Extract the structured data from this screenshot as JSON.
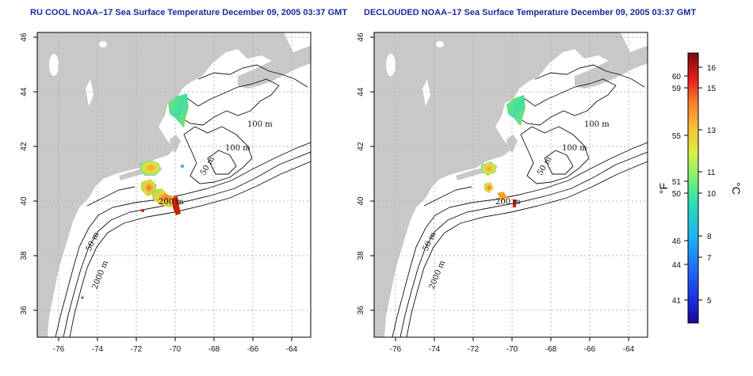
{
  "titles": {
    "left": "RU COOL NOAA–17 Sea Surface Temperature December 09, 2005 03:37 GMT",
    "right": "DECLOUDED NOAA–17 Sea Surface Temperature December 09, 2005 03:37 GMT"
  },
  "axes": {
    "x_ticks": [
      "-76",
      "-74",
      "-72",
      "-70",
      "-68",
      "-66",
      "-64"
    ],
    "y_ticks": [
      "36",
      "38",
      "40",
      "42",
      "44",
      "46"
    ]
  },
  "contour_labels": {
    "left": [
      "100 m",
      "100 m",
      "50 m",
      "200 m",
      "50 m",
      "2000 m"
    ],
    "right": [
      "100 m",
      "100 m",
      "50 m",
      "200 m",
      "50 m",
      "2000 m"
    ]
  },
  "colorbar": {
    "fahrenheit_ticks": [
      "60",
      "59",
      "55",
      "51",
      "50",
      "46",
      "44",
      "41"
    ],
    "celsius_ticks": [
      "16",
      "15",
      "13",
      "11",
      "10",
      "8",
      "7",
      "5"
    ],
    "fahrenheit_unit": "°F",
    "celsius_unit": "°C"
  },
  "colors": {
    "land": "#c8c8c8",
    "ocean": "#ffffff",
    "title": "#1a2a9c",
    "grid": "#b5b5b5"
  }
}
